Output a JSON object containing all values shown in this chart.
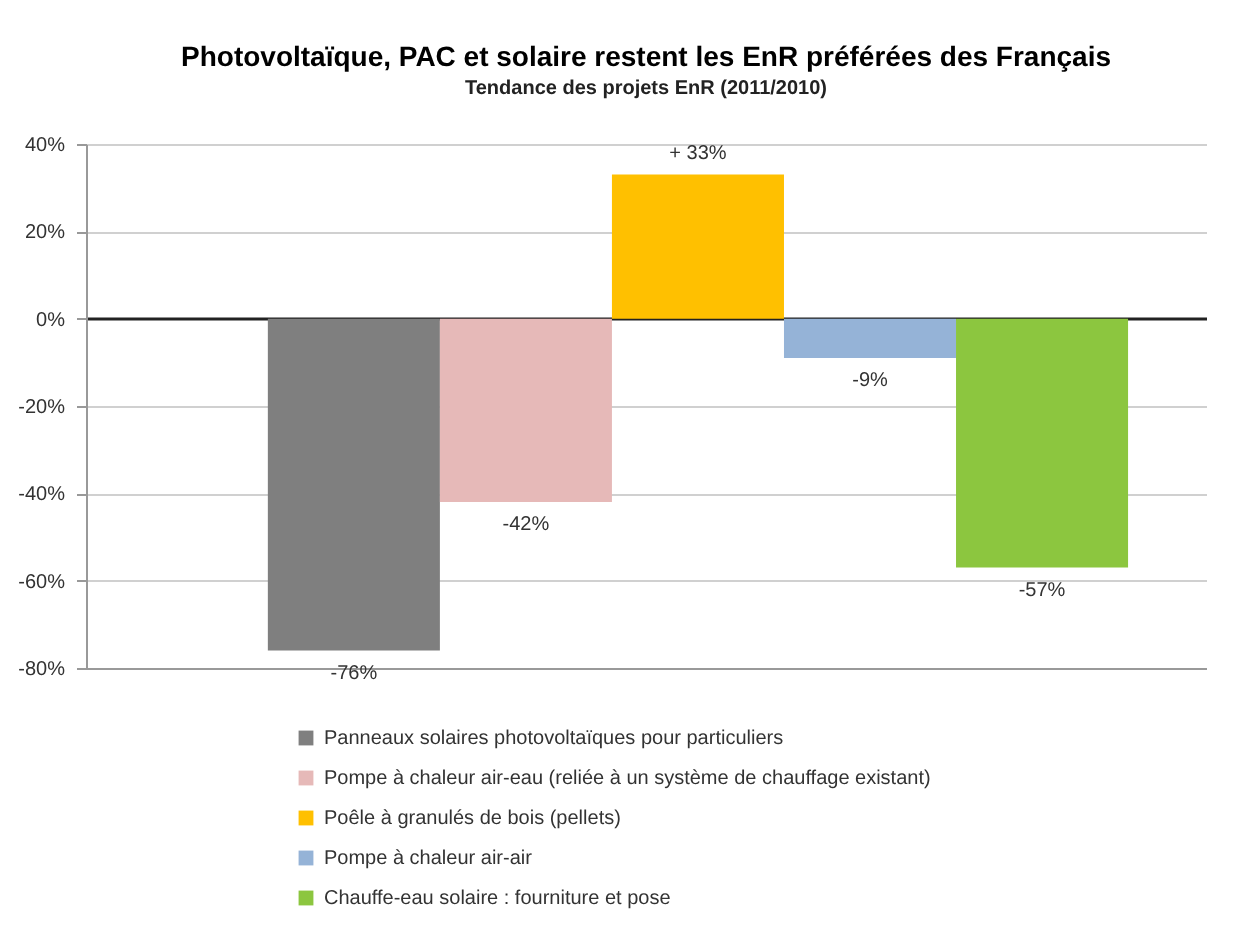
{
  "chart_data": {
    "type": "bar",
    "title": "Photovoltaïque, PAC et solaire restent les EnR préférées des Français",
    "subtitle": "Tendance des projets EnR (2011/2010)",
    "categories": [
      null
    ],
    "series": [
      {
        "name": "Panneaux solaires photovoltaïques pour particuliers",
        "color": "#7f7f7f",
        "values": [
          -76
        ],
        "value_labels": [
          "-76%"
        ]
      },
      {
        "name": "Pompe à chaleur air-eau (reliée à un système de chauffage existant)",
        "color": "#e6b9b8",
        "values": [
          -42
        ],
        "value_labels": [
          "-42%"
        ]
      },
      {
        "name": "Poêle à granulés de bois (pellets)",
        "color": "#ffc000",
        "values": [
          33
        ],
        "value_labels": [
          "+ 33%"
        ]
      },
      {
        "name": "Pompe à chaleur air-air",
        "color": "#95b3d7",
        "values": [
          -9
        ],
        "value_labels": [
          "-9%"
        ]
      },
      {
        "name": "Chauffe-eau solaire : fourniture et pose",
        "color": "#8cc63f",
        "values": [
          -57
        ],
        "value_labels": [
          "-57%"
        ]
      }
    ],
    "ylim": [
      -80,
      40
    ],
    "yticks": [
      {
        "value": 40,
        "label": "40%"
      },
      {
        "value": 20,
        "label": "20%"
      },
      {
        "value": 0,
        "label": "0%"
      },
      {
        "value": -20,
        "label": "-20%"
      },
      {
        "value": -40,
        "label": "-40%"
      },
      {
        "value": -60,
        "label": "-60%"
      },
      {
        "value": -80,
        "label": "-80%"
      }
    ],
    "grid": "y",
    "legend": "bottom",
    "tick_labels": "y"
  }
}
